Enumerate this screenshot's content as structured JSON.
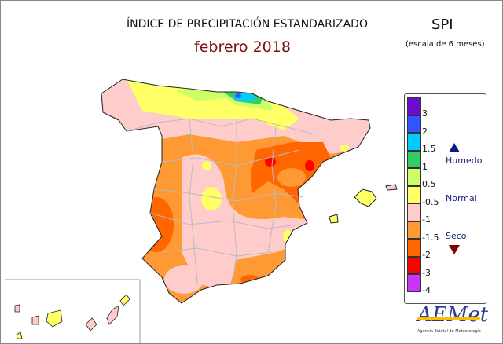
{
  "header": {
    "title": "ÍNDICE DE PRECIPITACIÓN ESTANDARIZADO",
    "subtitle": "febrero 2018",
    "index": "SPI",
    "scale": "(escala de 6 meses)"
  },
  "legend": {
    "classes": [
      {
        "color": "#6a0dcc"
      },
      {
        "color": "#3355ff"
      },
      {
        "color": "#00ccff"
      },
      {
        "color": "#33cc66"
      },
      {
        "color": "#ccff66"
      },
      {
        "color": "#ffff66"
      },
      {
        "color": "#ffcccc"
      },
      {
        "color": "#ff9933"
      },
      {
        "color": "#ff6600"
      },
      {
        "color": "#ff0000"
      },
      {
        "color": "#cc33ff"
      }
    ],
    "ticks": [
      "3",
      "2",
      "1.5",
      "1",
      "0.5",
      "-0.5",
      "-1",
      "-1.5",
      "-2",
      "-3",
      "-4"
    ],
    "wet_label": "Humedo",
    "normal_label": "Normal",
    "dry_label": "Seco",
    "wet_color": "#0a1a80",
    "dry_color": "#800000"
  },
  "logo": {
    "name": "AEMet",
    "caption": "Agencia Estatal de Meteorología"
  }
}
